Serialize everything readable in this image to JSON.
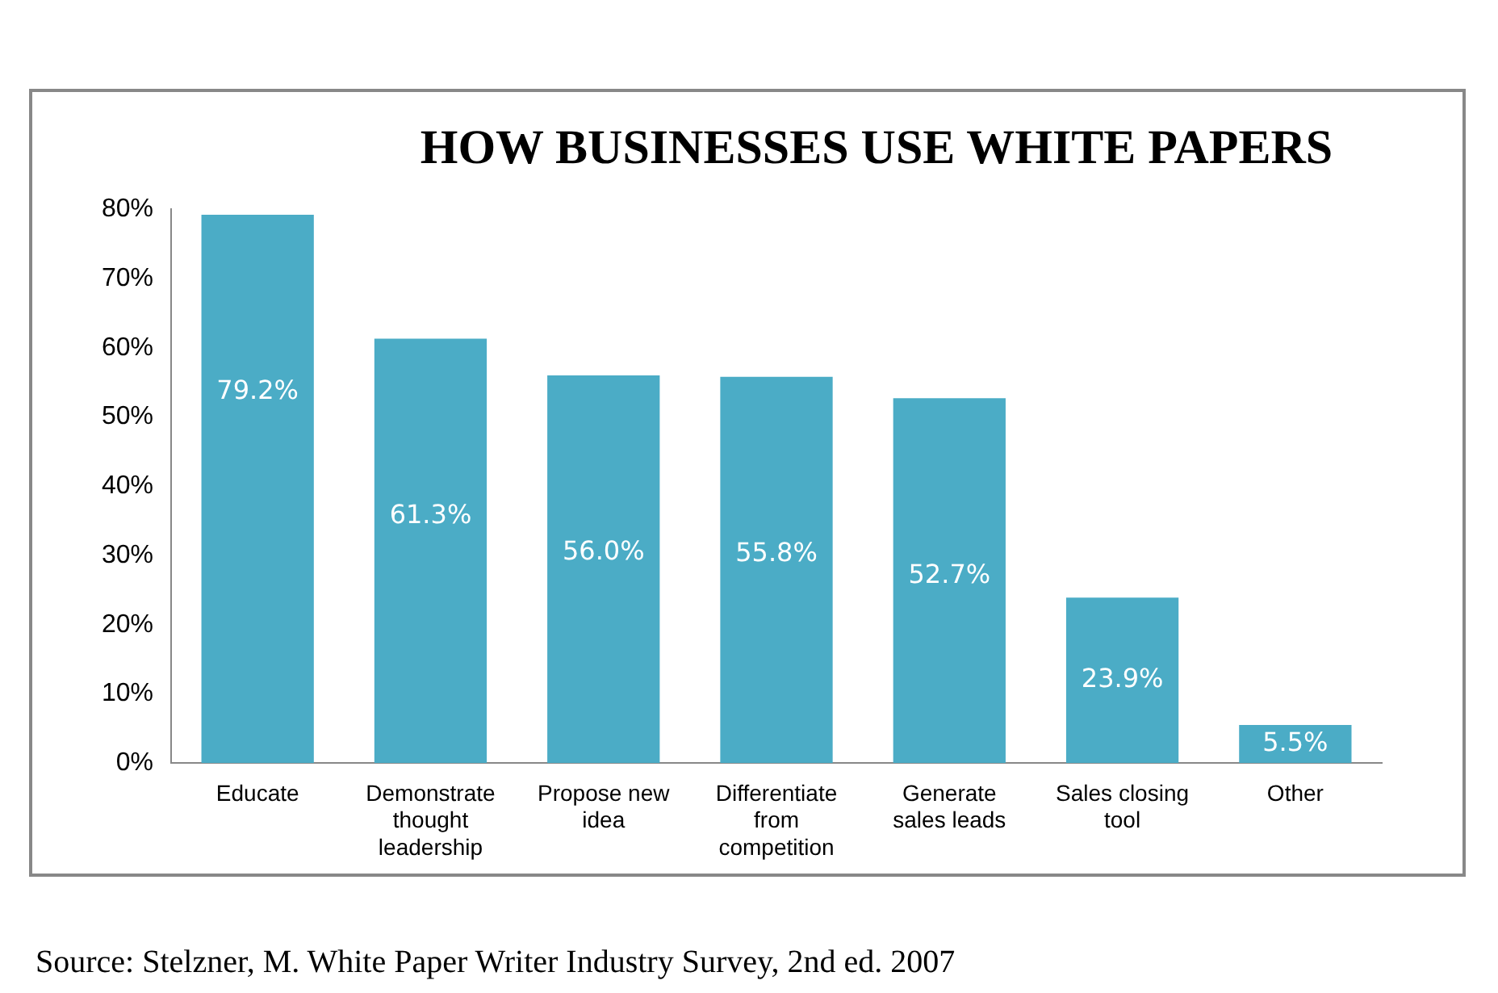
{
  "chart_data": {
    "type": "bar",
    "title": "HOW BUSINESSES USE WHITE PAPERS",
    "categories": [
      "Educate",
      "Demonstrate thought leadership",
      "Propose new idea",
      "Differentiate from competition",
      "Generate sales leads",
      "Sales closing tool",
      "Other"
    ],
    "values": [
      79.2,
      61.3,
      56.0,
      55.8,
      52.7,
      23.9,
      5.5
    ],
    "value_labels": [
      "79.2%",
      "61.3%",
      "56.0%",
      "55.8%",
      "52.7%",
      "23.9%",
      "5.5%"
    ],
    "color": "#4bacc6",
    "ylim": [
      0,
      80
    ],
    "yticks": [
      {
        "value": 0,
        "label": "0%"
      },
      {
        "value": 10,
        "label": "10%"
      },
      {
        "value": 20,
        "label": "20%"
      },
      {
        "value": 30,
        "label": "30%"
      },
      {
        "value": 40,
        "label": "40%"
      },
      {
        "value": 50,
        "label": "50%"
      },
      {
        "value": 60,
        "label": "60%"
      },
      {
        "value": 70,
        "label": "70%"
      },
      {
        "value": 80,
        "label": "80%"
      }
    ],
    "grid": false,
    "legend": false,
    "annotations": [
      "Source: Stelzner, M. White Paper Writer Industry Survey, 2nd ed. 2007"
    ]
  }
}
